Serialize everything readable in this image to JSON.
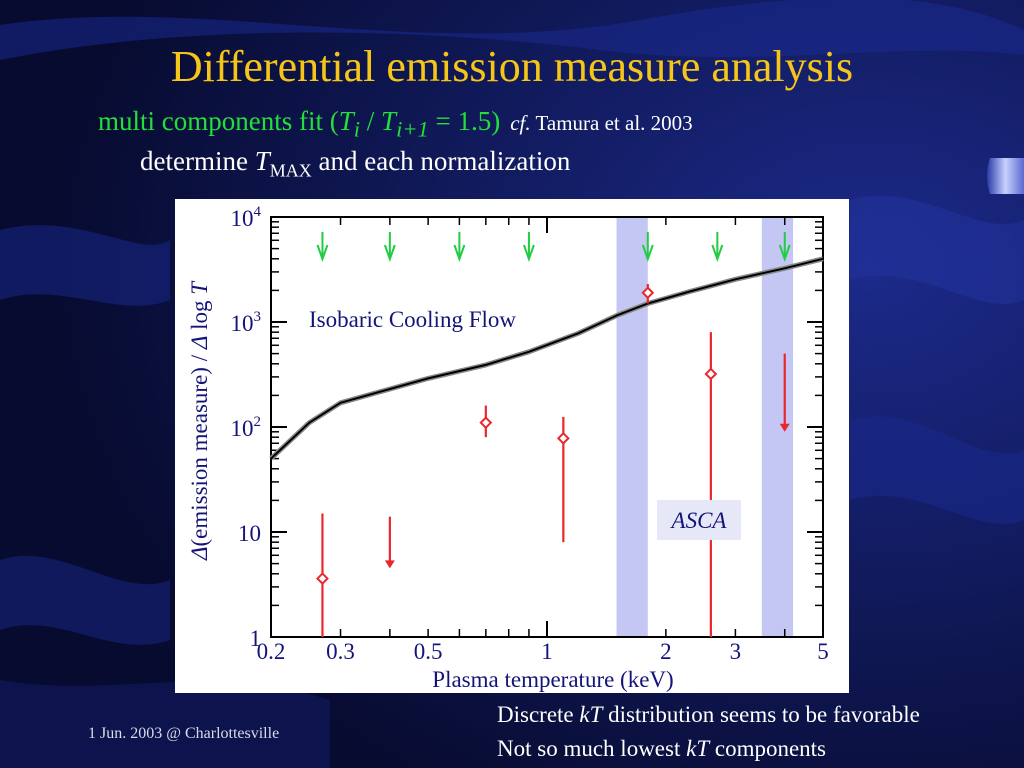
{
  "slide": {
    "title": "Differential emission measure analysis",
    "subtitle_prefix": "multi components fit (",
    "ratio_value": "= 1.5)",
    "cf_label": "cf.",
    "citation": "Tamura et al. 2003",
    "determine_prefix": "determine",
    "determine_suffix": "and each normalization",
    "footer_date": "1 Jun. 2003 @ Charlottesville",
    "note_1": {
      "prefix": "Discrete",
      "suffix": "distribution seems to be favorable"
    },
    "note_2": {
      "prefix": "Not so much lowest",
      "suffix": "components"
    },
    "colors": {
      "title": "#f5c518",
      "subtitle": "#22e03a",
      "background": "#0a0f3a"
    }
  },
  "chart_data": {
    "type": "scatter",
    "xlabel": "Plasma temperature (keV)",
    "ylabel_text": "(emission  measure) /",
    "ylabel_log": "log",
    "xscale": "log",
    "yscale": "log",
    "xlim": [
      0.2,
      5
    ],
    "ylim": [
      1,
      10000
    ],
    "x_ticks": [
      {
        "v": 0.2,
        "label": "0.2"
      },
      {
        "v": 0.3,
        "label": "0.3"
      },
      {
        "v": 0.5,
        "label": "0.5"
      },
      {
        "v": 1,
        "label": "1"
      },
      {
        "v": 2,
        "label": "2"
      },
      {
        "v": 3,
        "label": "3"
      },
      {
        "v": 5,
        "label": "5"
      }
    ],
    "y_ticks": [
      {
        "v": 1,
        "base": "1",
        "exp": ""
      },
      {
        "v": 10,
        "base": "10",
        "exp": ""
      },
      {
        "v": 100,
        "base": "10",
        "exp": "2"
      },
      {
        "v": 1000,
        "base": "10",
        "exp": "3"
      },
      {
        "v": 10000,
        "base": "10",
        "exp": "4"
      }
    ],
    "annotations": {
      "curve_label": "Isobaric Cooling Flow",
      "instrument_label": "ASCA"
    },
    "cooling_flow_curve": {
      "x": [
        0.2,
        0.25,
        0.3,
        0.4,
        0.5,
        0.7,
        0.9,
        1.2,
        1.5,
        1.8,
        2.3,
        3.0,
        4.0,
        5.0
      ],
      "y": [
        50,
        110,
        170,
        230,
        290,
        390,
        520,
        780,
        1150,
        1500,
        1950,
        2550,
        3250,
        4000
      ]
    },
    "highlight_bands": [
      {
        "x_from": 1.5,
        "x_to": 1.8
      },
      {
        "x_from": 3.5,
        "x_to": 4.2
      }
    ],
    "model_markers_green": [
      0.27,
      0.4,
      0.6,
      0.9,
      1.8,
      2.7,
      4.0
    ],
    "series": [
      {
        "color": "#e8282e",
        "points": [
          {
            "x": 0.27,
            "y": 3.6,
            "lo": 1,
            "hi": 15
          },
          {
            "x": 0.7,
            "y": 110,
            "lo": 80,
            "hi": 160
          },
          {
            "x": 1.1,
            "y": 78,
            "lo": 8,
            "hi": 125
          },
          {
            "x": 1.8,
            "y": 1900,
            "lo": 1500,
            "hi": 2300
          },
          {
            "x": 2.6,
            "y": 320,
            "lo": 1,
            "hi": 800
          }
        ],
        "upper_limits": [
          {
            "x": 0.4,
            "y_top": 14,
            "y_tip": 4.5
          },
          {
            "x": 4.0,
            "y_top": 500,
            "y_tip": 90
          }
        ]
      }
    ]
  }
}
